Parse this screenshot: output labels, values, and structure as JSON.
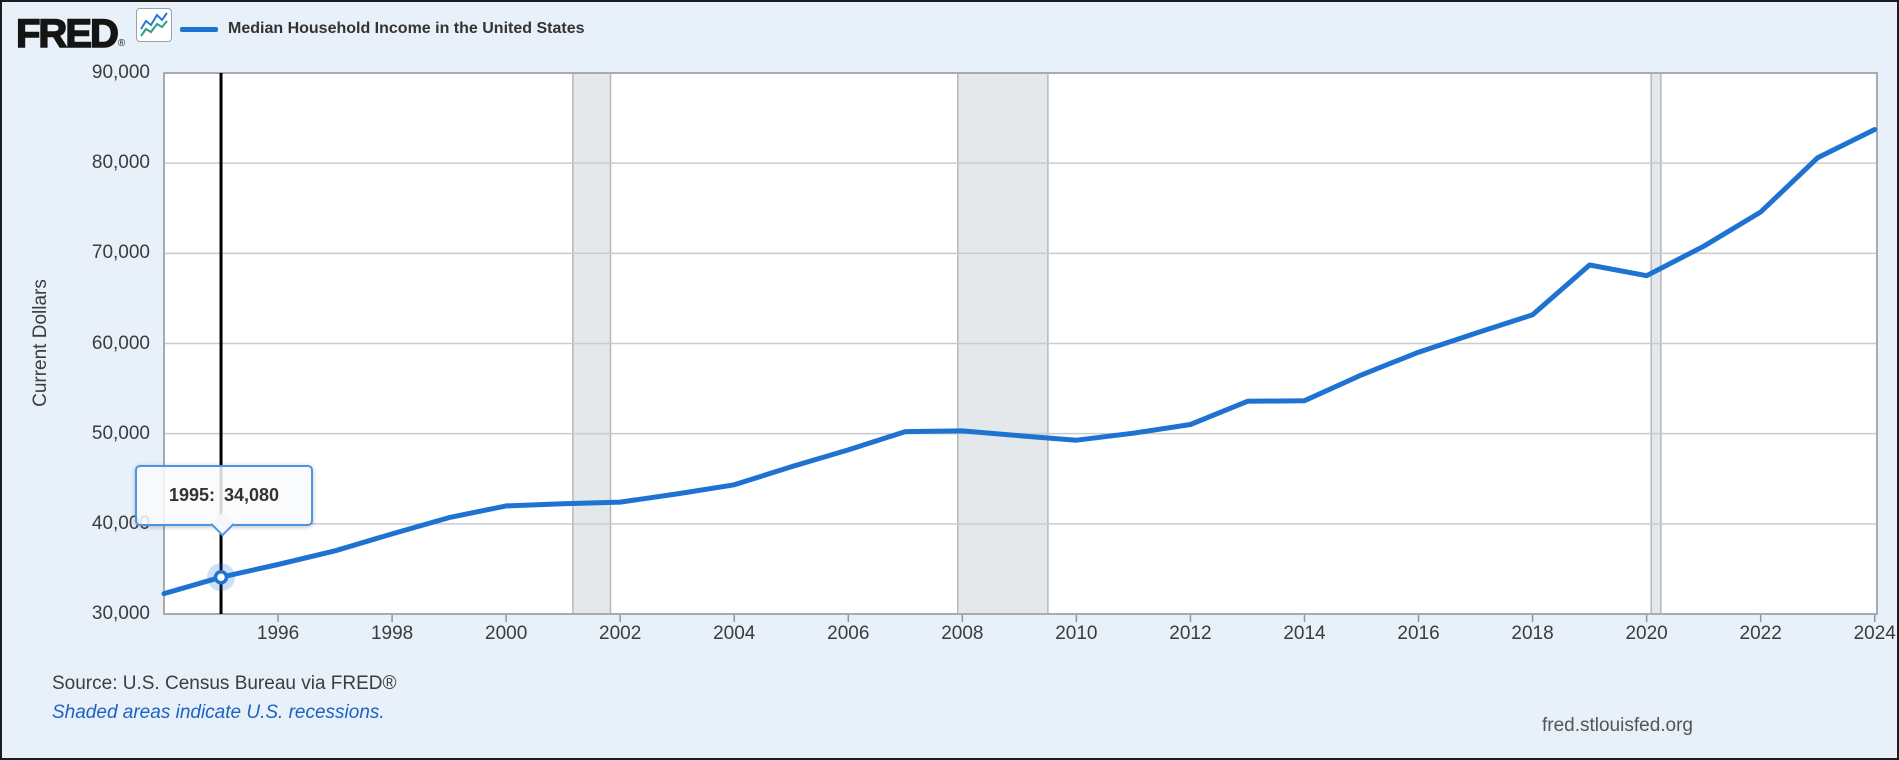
{
  "header": {
    "logo_text": "FRED",
    "logo_registered": "®",
    "legend_label": "Median Household Income in the United States"
  },
  "chart_data": {
    "type": "line",
    "title": "Median Household Income in the United States",
    "ylabel": "Current Dollars",
    "xlabel": "",
    "xlim": [
      1994,
      2024.04
    ],
    "ylim": [
      30000,
      90000
    ],
    "grid": "horizontal",
    "legend_position": "top-left",
    "line_color": "#1e72d2",
    "halo_color": "rgba(30,114,210,0.22)",
    "recession_fill": "#e4e8eb",
    "recession_edge": "#b4b8bb",
    "years": [
      1994,
      1995,
      1996,
      1997,
      1998,
      1999,
      2000,
      2001,
      2002,
      2003,
      2004,
      2005,
      2006,
      2007,
      2008,
      2009,
      2010,
      2011,
      2012,
      2013,
      2014,
      2015,
      2016,
      2017,
      2018,
      2019,
      2020,
      2021,
      2022,
      2023,
      2024
    ],
    "values": [
      32264,
      34080,
      35492,
      37005,
      38885,
      40696,
      41990,
      42228,
      42409,
      43318,
      44334,
      46326,
      48201,
      50233,
      50303,
      49777,
      49276,
      50054,
      51017,
      53585,
      53657,
      56516,
      59039,
      61136,
      63179,
      68703,
      67521,
      70784,
      74580,
      80610,
      83730
    ],
    "y_ticks": [
      {
        "value": 30000,
        "label": "30,000"
      },
      {
        "value": 40000,
        "label": "40,000"
      },
      {
        "value": 50000,
        "label": "50,000"
      },
      {
        "value": 60000,
        "label": "60,000"
      },
      {
        "value": 70000,
        "label": "70,000"
      },
      {
        "value": 80000,
        "label": "80,000"
      },
      {
        "value": 90000,
        "label": "90,000"
      }
    ],
    "x_ticks": [
      {
        "value": 1996,
        "label": "1996"
      },
      {
        "value": 1998,
        "label": "1998"
      },
      {
        "value": 2000,
        "label": "2000"
      },
      {
        "value": 2002,
        "label": "2002"
      },
      {
        "value": 2004,
        "label": "2004"
      },
      {
        "value": 2006,
        "label": "2006"
      },
      {
        "value": 2008,
        "label": "2008"
      },
      {
        "value": 2010,
        "label": "2010"
      },
      {
        "value": 2012,
        "label": "2012"
      },
      {
        "value": 2014,
        "label": "2014"
      },
      {
        "value": 2016,
        "label": "2016"
      },
      {
        "value": 2018,
        "label": "2018"
      },
      {
        "value": 2020,
        "label": "2020"
      },
      {
        "value": 2022,
        "label": "2022"
      },
      {
        "value": 2024,
        "label": "2024"
      }
    ],
    "recessions": [
      {
        "start": 2001.17,
        "end": 2001.83
      },
      {
        "start": 2007.92,
        "end": 2009.5
      },
      {
        "start": 2020.08,
        "end": 2020.25
      }
    ],
    "cursor": {
      "year": 1995,
      "value": 34080
    }
  },
  "tooltip": {
    "year_label": "1995:",
    "value_label": "34,080"
  },
  "footer": {
    "source": "Source: U.S. Census Bureau via FRED®",
    "note": "Shaded areas indicate U.S. recessions.",
    "site": "fred.stlouisfed.org"
  }
}
